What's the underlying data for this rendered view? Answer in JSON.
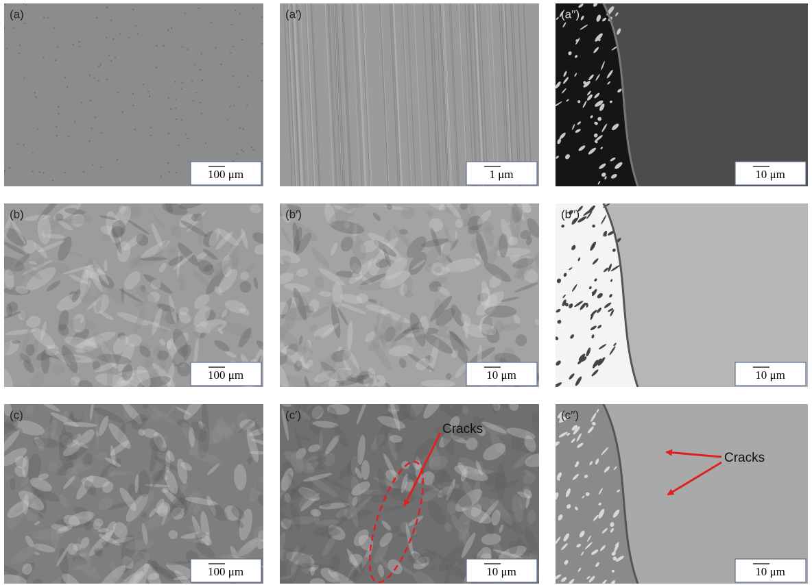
{
  "panels": [
    {
      "label": "(a)",
      "scale_bar": "100 μm"
    },
    {
      "label": "(a′)",
      "scale_bar": "1 μm"
    },
    {
      "label": "(a′′)",
      "scale_bar": "10 μm"
    },
    {
      "label": "(b)",
      "scale_bar": "100 μm"
    },
    {
      "label": "(b′)",
      "scale_bar": "10 μm"
    },
    {
      "label": "(b′′)",
      "scale_bar": "10 μm"
    },
    {
      "label": "(c)",
      "scale_bar": "100 μm"
    },
    {
      "label": "(c′)",
      "scale_bar": "10 μm",
      "annotation": "Cracks"
    },
    {
      "label": "(c′′)",
      "scale_bar": "10 μm",
      "annotation": "Cracks"
    }
  ]
}
